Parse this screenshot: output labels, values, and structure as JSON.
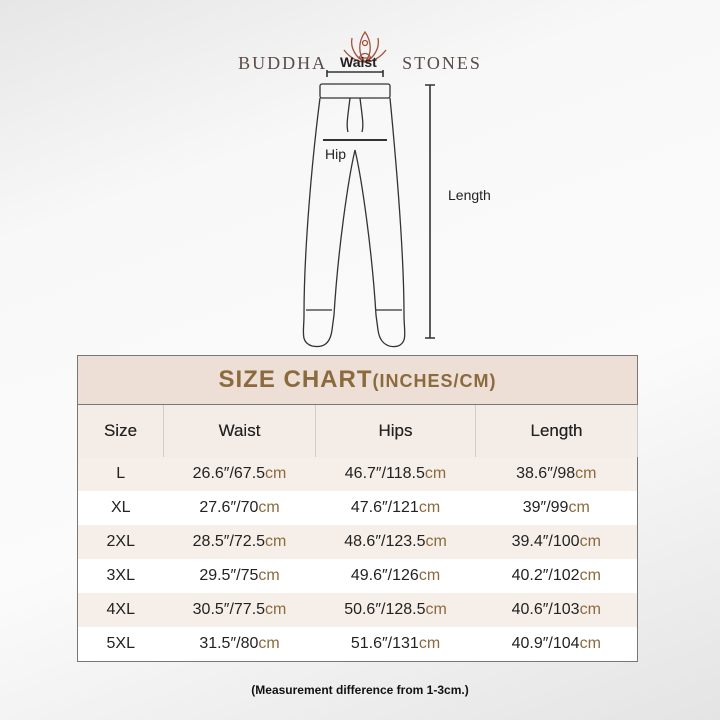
{
  "brand": {
    "left": "BUDDHA",
    "right": "STONES"
  },
  "diagram": {
    "waist": "Waist",
    "hip": "Hip",
    "length": "Length"
  },
  "table": {
    "title": "SIZE CHART",
    "title_unit": "(INCHES/CM)",
    "headers": [
      "Size",
      "Waist",
      "Hips",
      "Length"
    ],
    "unit": "cm",
    "rows": [
      [
        "L",
        "26.6″/67.5",
        "46.7″/118.5",
        "38.6″/98"
      ],
      [
        "XL",
        "27.6″/70",
        "47.6″/121",
        "39″/99"
      ],
      [
        "2XL",
        "28.5″/72.5",
        "48.6″/123.5",
        "39.4″/100"
      ],
      [
        "3XL",
        "29.5″/75",
        "49.6″/126",
        "40.2″/102"
      ],
      [
        "4XL",
        "30.5″/77.5",
        "50.6″/128.5",
        "40.6″/103"
      ],
      [
        "5XL",
        "31.5″/80",
        "51.6″/131",
        "40.9″/104"
      ]
    ]
  },
  "note": "(Measurement difference from 1-3cm.)",
  "colors": {
    "accent": "#8b6a3e",
    "header_bg": "#eddfd5"
  }
}
